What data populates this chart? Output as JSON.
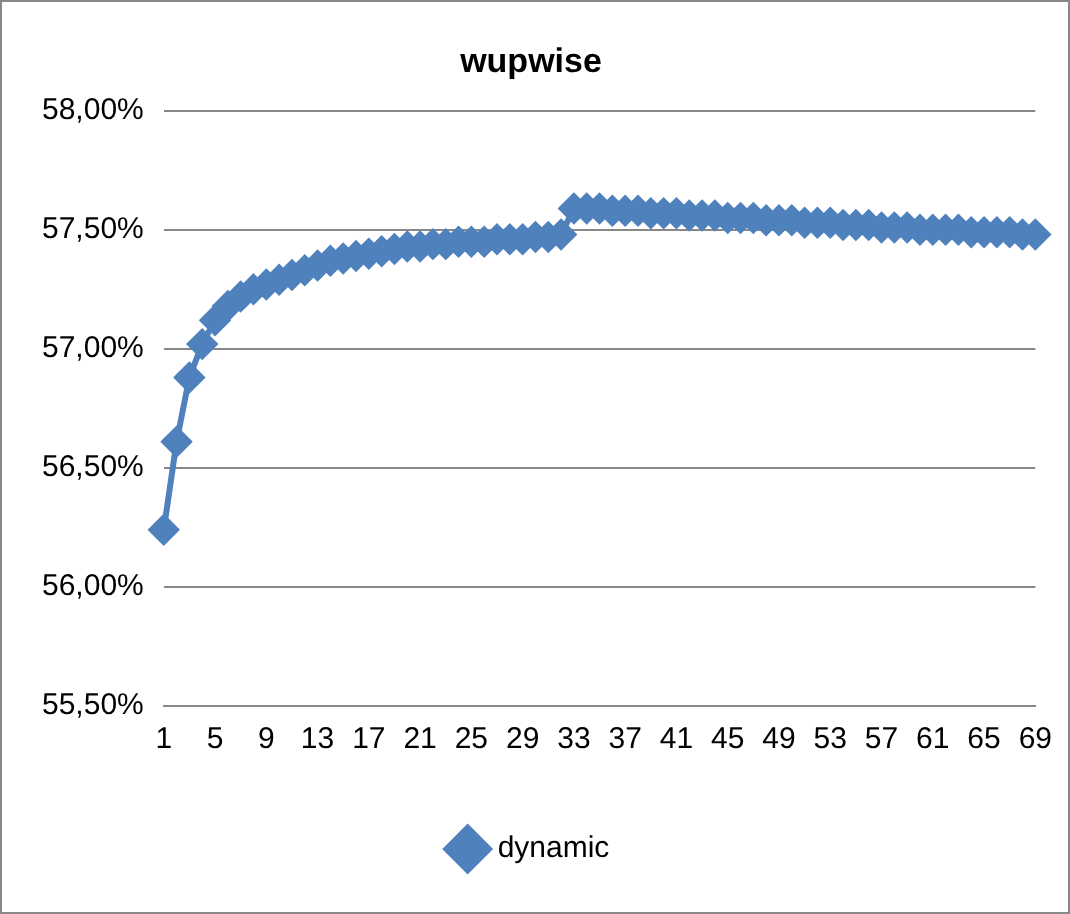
{
  "chart_data": {
    "type": "line",
    "title": "wupwise",
    "categories": [
      "1",
      null,
      null,
      null,
      "5",
      null,
      null,
      null,
      "9",
      null,
      null,
      null,
      "13",
      null,
      null,
      null,
      "17",
      null,
      null,
      null,
      "21",
      null,
      null,
      null,
      "25",
      null,
      null,
      null,
      "29",
      null,
      null,
      null,
      "33",
      null,
      null,
      null,
      "37",
      null,
      null,
      null,
      "41",
      null,
      null,
      null,
      "45",
      null,
      null,
      null,
      "49",
      null,
      null,
      null,
      "53",
      null,
      null,
      null,
      "57",
      null,
      null,
      null,
      "61",
      null,
      null,
      null,
      "65",
      null,
      null,
      null,
      "69"
    ],
    "series": [
      {
        "name": "dynamic",
        "color": "#4f81bd",
        "values": [
          56.24,
          56.61,
          56.88,
          57.02,
          57.12,
          57.18,
          57.22,
          57.25,
          57.27,
          57.29,
          57.31,
          57.33,
          57.35,
          57.37,
          57.38,
          57.39,
          57.4,
          57.41,
          57.42,
          57.43,
          57.43,
          57.44,
          57.44,
          57.45,
          57.45,
          57.45,
          57.46,
          57.46,
          57.46,
          57.47,
          57.47,
          57.48,
          57.59,
          57.59,
          57.59,
          57.58,
          57.58,
          57.58,
          57.57,
          57.57,
          57.57,
          57.56,
          57.56,
          57.56,
          57.55,
          57.55,
          57.55,
          57.54,
          57.54,
          57.54,
          57.53,
          57.53,
          57.53,
          57.52,
          57.52,
          57.52,
          57.51,
          57.51,
          57.51,
          57.5,
          57.5,
          57.5,
          57.5,
          57.49,
          57.49,
          57.49,
          57.49,
          57.48,
          57.48
        ]
      }
    ],
    "ylim": [
      55.5,
      58
    ],
    "yticks": [
      {
        "value": 55.5,
        "label": "55,50%"
      },
      {
        "value": 56,
        "label": "56,00%"
      },
      {
        "value": 56.5,
        "label": "56,50%"
      },
      {
        "value": 57,
        "label": "57,00%"
      },
      {
        "value": 57.5,
        "label": "57,50%"
      },
      {
        "value": 58,
        "label": "58,00%"
      }
    ],
    "grid": "y",
    "legend": "bottom",
    "marker": "diamond",
    "line_style": "solid"
  }
}
